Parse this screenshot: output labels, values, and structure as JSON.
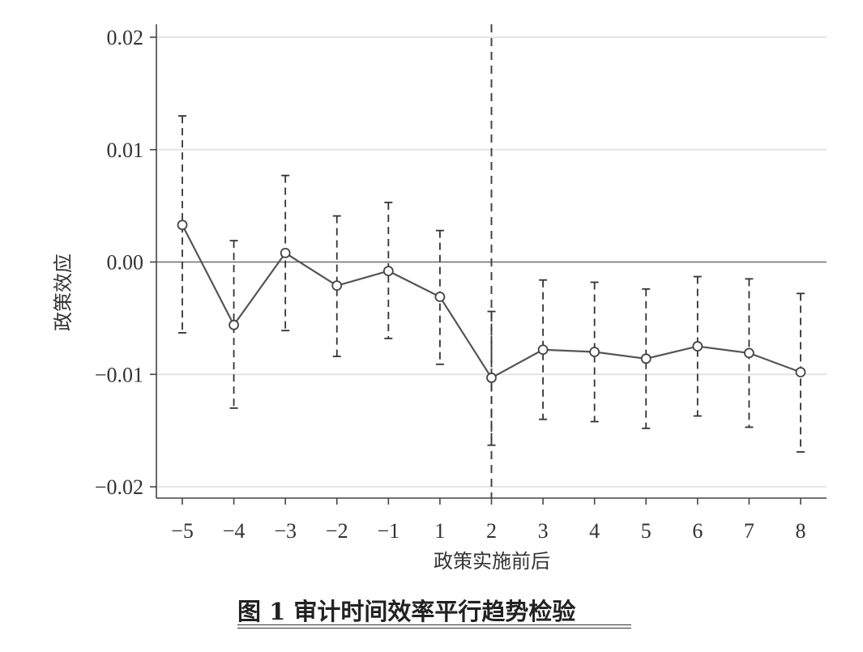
{
  "chart_data": {
    "type": "line",
    "xlabel": "政策实施前后",
    "ylabel": "政策效应",
    "categories": [
      "−5",
      "−4",
      "−3",
      "−2",
      "−1",
      "1",
      "2",
      "3",
      "4",
      "5",
      "6",
      "7",
      "8"
    ],
    "series": [
      {
        "values": [
          0.0033,
          -0.0056,
          0.0008,
          -0.0021,
          -0.0008,
          -0.0031,
          -0.0103,
          -0.0078,
          -0.008,
          -0.0086,
          -0.0075,
          -0.0081,
          -0.0098
        ],
        "ci_lower": [
          -0.0063,
          -0.013,
          -0.0061,
          -0.0084,
          -0.0068,
          -0.0091,
          -0.0163,
          -0.014,
          -0.0142,
          -0.0148,
          -0.0137,
          -0.0147,
          -0.0169
        ],
        "ci_upper": [
          0.013,
          0.0019,
          0.0077,
          0.0041,
          0.0053,
          0.0028,
          -0.0044,
          -0.0016,
          -0.0018,
          -0.0024,
          -0.0013,
          -0.0015,
          -0.0028
        ]
      }
    ],
    "ylim": [
      -0.021,
      0.021
    ],
    "yticks": [
      "0.02",
      "0.01",
      "0.00",
      "−0.01",
      "−0.02"
    ],
    "ytick_values": [
      0.02,
      0.01,
      0.0,
      -0.01,
      -0.02
    ],
    "reference_line_y": 0.0,
    "vertical_reference_category": "2",
    "grid": "horizontal",
    "legend": "none",
    "colors": {
      "line": "#555555",
      "grid": "#e4e4e4",
      "axis": "#444444"
    }
  },
  "caption": "图 1   审计时间效率平行趋势检验"
}
